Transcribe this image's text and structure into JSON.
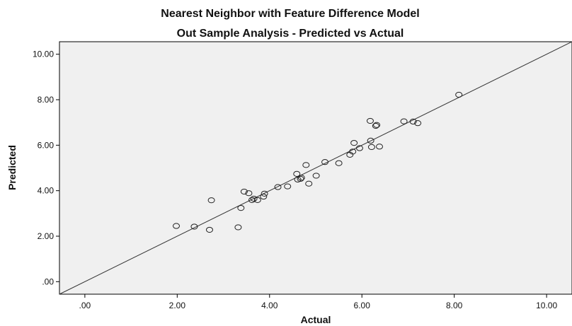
{
  "chart_data": {
    "type": "scatter",
    "title": "Nearest Neighbor with Feature Difference Model",
    "subtitle": "Out Sample Analysis - Predicted vs Actual",
    "xlabel": "Actual",
    "ylabel": "Predicted",
    "xlim": [
      -0.55,
      10.55
    ],
    "ylim": [
      -0.55,
      10.55
    ],
    "x_ticks": [
      0,
      2,
      4,
      6,
      8,
      10
    ],
    "x_tick_labels": [
      ".00",
      "2.00",
      "4.00",
      "6.00",
      "8.00",
      "10.00"
    ],
    "y_ticks": [
      0,
      2,
      4,
      6,
      8,
      10
    ],
    "y_tick_labels": [
      ".00",
      "2.00",
      "4.00",
      "6.00",
      "8.00",
      "10.00"
    ],
    "reference_line": {
      "from": [
        -0.55,
        -0.55
      ],
      "to": [
        10.55,
        10.55
      ]
    },
    "grid": false,
    "legend": "none",
    "colors": {
      "plot_background": "#f0f0f0",
      "frame": "#000000",
      "marker_stroke": "#222222",
      "reference_line": "#333333"
    },
    "points": [
      {
        "x": 1.98,
        "y": 2.45
      },
      {
        "x": 2.37,
        "y": 2.42
      },
      {
        "x": 2.7,
        "y": 2.28
      },
      {
        "x": 2.74,
        "y": 3.58
      },
      {
        "x": 3.32,
        "y": 2.39
      },
      {
        "x": 3.38,
        "y": 3.24
      },
      {
        "x": 3.45,
        "y": 3.96
      },
      {
        "x": 3.55,
        "y": 3.89
      },
      {
        "x": 3.62,
        "y": 3.59
      },
      {
        "x": 3.66,
        "y": 3.65
      },
      {
        "x": 3.74,
        "y": 3.59
      },
      {
        "x": 3.87,
        "y": 3.74
      },
      {
        "x": 3.89,
        "y": 3.87
      },
      {
        "x": 4.18,
        "y": 4.16
      },
      {
        "x": 4.39,
        "y": 4.19
      },
      {
        "x": 4.59,
        "y": 4.74
      },
      {
        "x": 4.61,
        "y": 4.49
      },
      {
        "x": 4.67,
        "y": 4.52
      },
      {
        "x": 4.69,
        "y": 4.57
      },
      {
        "x": 4.79,
        "y": 5.13
      },
      {
        "x": 4.85,
        "y": 4.31
      },
      {
        "x": 5.01,
        "y": 4.66
      },
      {
        "x": 5.2,
        "y": 5.26
      },
      {
        "x": 5.5,
        "y": 5.21
      },
      {
        "x": 5.74,
        "y": 5.58
      },
      {
        "x": 5.8,
        "y": 5.72
      },
      {
        "x": 5.83,
        "y": 6.1
      },
      {
        "x": 5.95,
        "y": 5.87
      },
      {
        "x": 6.18,
        "y": 7.07
      },
      {
        "x": 6.19,
        "y": 6.2
      },
      {
        "x": 6.21,
        "y": 5.92
      },
      {
        "x": 6.3,
        "y": 6.85
      },
      {
        "x": 6.32,
        "y": 6.89
      },
      {
        "x": 6.38,
        "y": 5.94
      },
      {
        "x": 6.91,
        "y": 7.05
      },
      {
        "x": 7.11,
        "y": 7.04
      },
      {
        "x": 7.21,
        "y": 6.97
      },
      {
        "x": 8.1,
        "y": 8.22
      }
    ]
  }
}
